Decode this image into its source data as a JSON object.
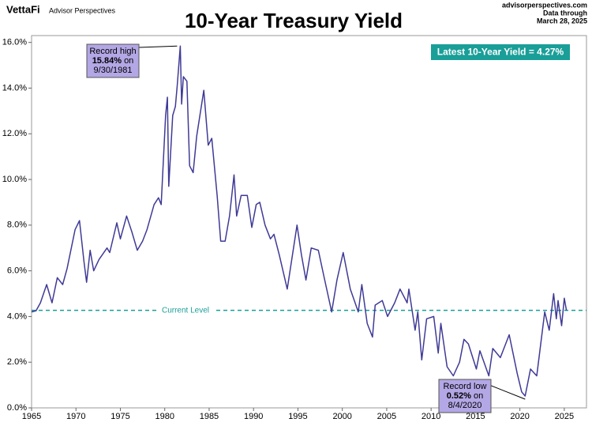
{
  "header": {
    "brand": "VettaFi",
    "publisher": "Advisor Perspectives",
    "site": "advisorperspectives.com",
    "data_through": "Data through",
    "date": "March 28, 2025"
  },
  "chart_data": {
    "type": "line",
    "title": "10-Year Treasury Yield",
    "color": "#3f3a96",
    "x": [
      1965,
      1965.5,
      1966,
      1966.7,
      1967.3,
      1967.9,
      1968.5,
      1969,
      1969.9,
      1970.4,
      1970.9,
      1971.2,
      1971.6,
      1972,
      1972.6,
      1973.5,
      1973.8,
      1974.6,
      1975,
      1975.7,
      1976.3,
      1976.9,
      1977.5,
      1978,
      1978.8,
      1979.3,
      1979.6,
      1980.1,
      1980.3,
      1980.45,
      1980.9,
      1981.2,
      1981.4,
      1981.75,
      1981.9,
      1982.1,
      1982.5,
      1982.8,
      1983.2,
      1983.6,
      1984.4,
      1984.9,
      1985.3,
      1985.9,
      1986.3,
      1986.8,
      1987.3,
      1987.8,
      1988.1,
      1988.6,
      1989.3,
      1989.8,
      1990.3,
      1990.7,
      1991.3,
      1991.9,
      1992.3,
      1992.9,
      1993.8,
      1994.9,
      1995.4,
      1995.9,
      1996.5,
      1997.3,
      1997.9,
      1998.8,
      1999.4,
      2000.1,
      2000.9,
      2001.8,
      2002.2,
      2002.8,
      2003.4,
      2003.7,
      2004.5,
      2005.1,
      2005.9,
      2006.5,
      2007.3,
      2007.5,
      2008.2,
      2008.5,
      2008.95,
      2009.5,
      2010.3,
      2010.8,
      2011.1,
      2011.8,
      2012.5,
      2013.2,
      2013.7,
      2014.2,
      2015.1,
      2015.5,
      2016.5,
      2016.95,
      2017.8,
      2018.8,
      2019.7,
      2020.2,
      2020.59,
      2021.2,
      2021.9,
      2022.8,
      2023.3,
      2023.8,
      2024.1,
      2024.3,
      2024.7,
      2025.0,
      2025.24
    ],
    "values": [
      4.2,
      4.25,
      4.6,
      5.4,
      4.6,
      5.7,
      5.4,
      6.1,
      7.8,
      8.2,
      6.4,
      5.5,
      6.9,
      6.0,
      6.5,
      7.0,
      6.8,
      8.1,
      7.4,
      8.4,
      7.7,
      6.9,
      7.3,
      7.8,
      8.9,
      9.2,
      8.9,
      12.8,
      13.6,
      9.7,
      12.8,
      13.2,
      14.1,
      15.84,
      13.3,
      14.5,
      14.3,
      10.6,
      10.3,
      11.9,
      13.9,
      11.5,
      11.8,
      9.3,
      7.3,
      7.3,
      8.4,
      10.2,
      8.4,
      9.3,
      9.3,
      7.9,
      8.9,
      9.0,
      8.0,
      7.4,
      7.6,
      6.7,
      5.2,
      8.0,
      6.7,
      5.6,
      7.0,
      6.9,
      5.8,
      4.2,
      5.6,
      6.8,
      5.2,
      4.2,
      5.4,
      3.7,
      3.1,
      4.5,
      4.7,
      4.0,
      4.6,
      5.2,
      4.6,
      5.2,
      3.4,
      4.2,
      2.1,
      3.9,
      4.0,
      2.4,
      3.7,
      1.8,
      1.4,
      2.0,
      3.0,
      2.8,
      1.7,
      2.5,
      1.4,
      2.6,
      2.2,
      3.2,
      1.5,
      0.7,
      0.52,
      1.7,
      1.4,
      4.2,
      3.4,
      5.0,
      3.9,
      4.7,
      3.6,
      4.8,
      4.27
    ],
    "xlim": [
      1965,
      2027.5
    ],
    "xticks": [
      1965,
      1970,
      1975,
      1980,
      1985,
      1990,
      1995,
      2000,
      2005,
      2010,
      2015,
      2020,
      2025
    ],
    "ylim": [
      0,
      16.3
    ],
    "yticks": [
      {
        "value": 0,
        "label": "0.0%"
      },
      {
        "value": 2,
        "label": "2.0%"
      },
      {
        "value": 4,
        "label": "4.0%"
      },
      {
        "value": 6,
        "label": "6.0%"
      },
      {
        "value": 8,
        "label": "8.0%"
      },
      {
        "value": 10,
        "label": "10.0%"
      },
      {
        "value": 12,
        "label": "12.0%"
      },
      {
        "value": 14,
        "label": "14.0%"
      },
      {
        "value": 16,
        "label": "16.0%"
      }
    ],
    "current_level": {
      "label": "Current Level",
      "value": 4.27,
      "color": "#1a9e98"
    },
    "latest_label": "Latest 10-Year Yield = 4.27%",
    "annotations": [
      {
        "label": "Record high",
        "value_label": "15.84%",
        "suffix": "on",
        "date": "9/30/1981",
        "value": 15.84,
        "x": 1981.75
      },
      {
        "label": "Record low",
        "value_label": "0.52%",
        "suffix": "on",
        "date": "8/4/2020",
        "value": 0.52,
        "x": 2020.59
      }
    ]
  }
}
